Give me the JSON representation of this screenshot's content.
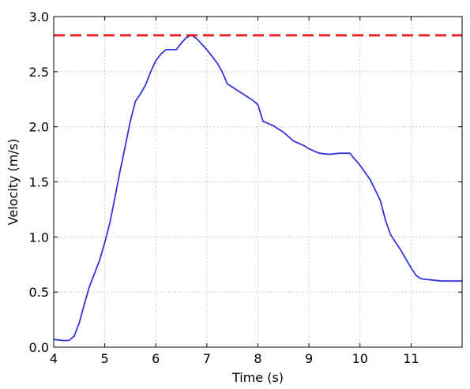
{
  "chart_data": {
    "type": "line",
    "xlabel": "Time (s)",
    "ylabel": "Velocity (m/s)",
    "xlim": [
      4.0,
      12.0
    ],
    "ylim": [
      0.0,
      3.0
    ],
    "xticks": [
      4,
      5,
      6,
      7,
      8,
      9,
      10,
      11
    ],
    "xtick_labels": [
      "4",
      "5",
      "6",
      "7",
      "8",
      "9",
      "10",
      "11"
    ],
    "yticks": [
      0.0,
      0.5,
      1.0,
      1.5,
      2.0,
      2.5,
      3.0
    ],
    "ytick_labels": [
      "0.0",
      "0.5",
      "1.0",
      "1.5",
      "2.0",
      "2.5",
      "3.0"
    ],
    "grid": true,
    "series": [
      {
        "color": "#3333dd",
        "style": "solid",
        "x": [
          4.0,
          4.1,
          4.2,
          4.3,
          4.4,
          4.5,
          4.6,
          4.7,
          4.8,
          4.9,
          5.0,
          5.1,
          5.2,
          5.3,
          5.4,
          5.5,
          5.6,
          5.7,
          5.8,
          5.9,
          6.0,
          6.1,
          6.2,
          6.3,
          6.4,
          6.5,
          6.6,
          6.7,
          6.8,
          6.9,
          7.0,
          7.1,
          7.2,
          7.3,
          7.4,
          7.5,
          7.6,
          7.7,
          7.8,
          7.9,
          8.0,
          8.1,
          8.2,
          8.3,
          8.4,
          8.5,
          8.6,
          8.7,
          8.8,
          8.9,
          9.0,
          9.2,
          9.4,
          9.6,
          9.8,
          10.0,
          10.2,
          10.4,
          10.5,
          10.6,
          10.7,
          10.8,
          10.9,
          11.0,
          11.1,
          11.2,
          11.4,
          11.6,
          11.8,
          11.9,
          12.0
        ],
        "y": [
          0.07,
          0.065,
          0.06,
          0.062,
          0.1,
          0.22,
          0.39,
          0.55,
          0.67,
          0.79,
          0.95,
          1.13,
          1.36,
          1.6,
          1.82,
          2.05,
          2.23,
          2.3,
          2.38,
          2.5,
          2.6,
          2.66,
          2.7,
          2.7,
          2.7,
          2.76,
          2.81,
          2.83,
          2.8,
          2.75,
          2.7,
          2.64,
          2.58,
          2.5,
          2.39,
          2.36,
          2.33,
          2.3,
          2.27,
          2.24,
          2.2,
          2.05,
          2.03,
          2.01,
          1.98,
          1.95,
          1.91,
          1.87,
          1.85,
          1.83,
          1.8,
          1.76,
          1.75,
          1.76,
          1.76,
          1.65,
          1.52,
          1.33,
          1.15,
          1.02,
          0.95,
          0.88,
          0.8,
          0.72,
          0.65,
          0.62,
          0.61,
          0.6,
          0.6,
          0.6,
          0.6
        ]
      },
      {
        "color": "#e8282b",
        "style": "dashed",
        "x": [
          4.0,
          12.0
        ],
        "y": [
          2.83,
          2.83
        ]
      }
    ]
  }
}
